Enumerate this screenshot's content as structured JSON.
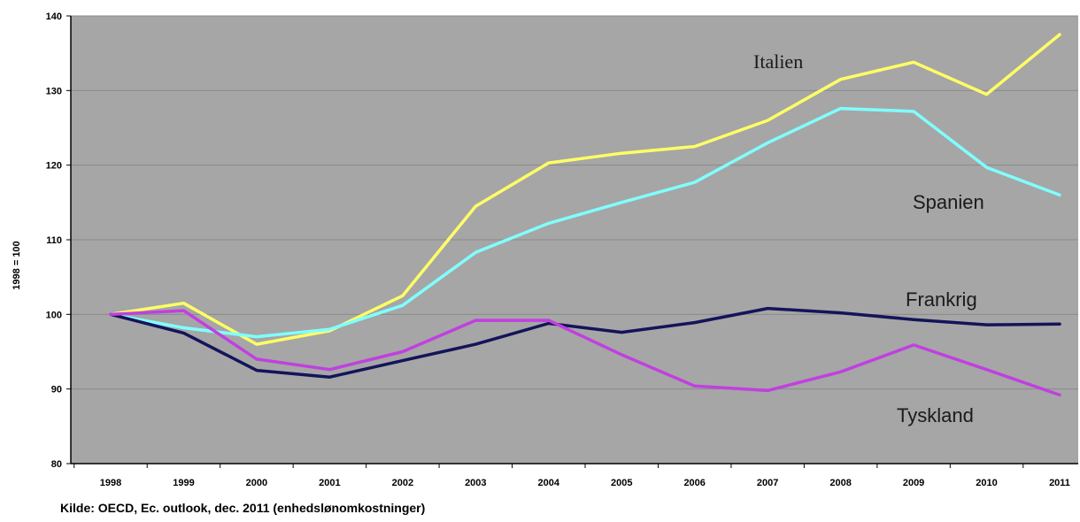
{
  "chart_data": {
    "type": "line",
    "ylabel": "1998 = 100",
    "ylim": [
      80,
      140
    ],
    "yticks": [
      80,
      90,
      100,
      110,
      120,
      130,
      140
    ],
    "categories": [
      "1998",
      "1999",
      "2000",
      "2001",
      "2002",
      "2003",
      "2004",
      "2005",
      "2006",
      "2007",
      "2008",
      "2009",
      "2010",
      "2011"
    ],
    "grid": true,
    "background": "#a6a6a6",
    "series": [
      {
        "name": "Italien",
        "color": "#ffff66",
        "label_font": "serif",
        "values": [
          100.0,
          101.5,
          96.0,
          97.8,
          102.5,
          114.5,
          120.3,
          121.6,
          122.5,
          126.0,
          131.5,
          133.8,
          129.5,
          137.5
        ]
      },
      {
        "name": "Spanien",
        "color": "#80ffff",
        "label_font": "sans",
        "values": [
          100.0,
          98.2,
          97.0,
          98.0,
          101.2,
          108.3,
          112.2,
          115.0,
          117.7,
          123.0,
          127.6,
          127.2,
          119.7,
          116.0
        ]
      },
      {
        "name": "Frankrig",
        "color": "#14145a",
        "label_font": "sans",
        "values": [
          100.0,
          97.5,
          92.5,
          91.6,
          93.8,
          96.0,
          98.8,
          97.6,
          98.9,
          100.8,
          100.2,
          99.3,
          98.6,
          98.7
        ]
      },
      {
        "name": "Tyskland",
        "color": "#c040e0",
        "label_font": "sans",
        "values": [
          100.0,
          100.5,
          94.0,
          92.6,
          95.0,
          99.2,
          99.2,
          94.6,
          90.4,
          89.8,
          92.3,
          95.9,
          92.6,
          89.2
        ]
      }
    ]
  },
  "source_text": "Kilde: OECD, Ec. outlook, dec. 2011 (enhedslønomkostninger)"
}
